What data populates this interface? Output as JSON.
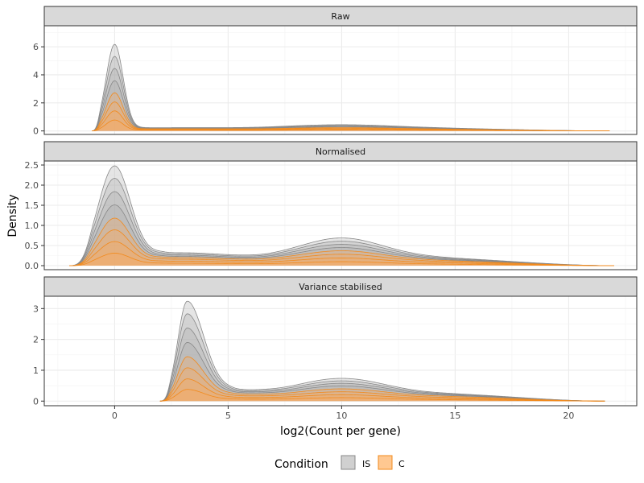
{
  "chart_data": {
    "type": "area",
    "xlabel": "log2(Count per gene)",
    "ylabel": "Density",
    "xlim": [
      -3.1,
      23.0
    ],
    "x_ticks": [
      0,
      5,
      10,
      15,
      20
    ],
    "grid": true,
    "legend": {
      "title": "Condition",
      "placement": "bottom",
      "entries": [
        {
          "name": "IS",
          "fill": "#d0d0d0",
          "line": "#888888"
        },
        {
          "name": "C",
          "fill": "#ffc891",
          "line": "#f28a1c"
        }
      ]
    },
    "panels": [
      {
        "strip": "Raw",
        "ylim": [
          -0.25,
          7.5
        ],
        "y_ticks": [
          0,
          2,
          4,
          6
        ],
        "x_start": -1.0,
        "x_end": 21.8,
        "curves": [
          {
            "condition": "C",
            "peak": 0.78,
            "valley": 0.05,
            "plateau": 0.03
          },
          {
            "condition": "C",
            "peak": 1.43,
            "valley": 0.09,
            "plateau": 0.06
          },
          {
            "condition": "C",
            "peak": 2.07,
            "valley": 0.12,
            "plateau": 0.09
          },
          {
            "condition": "C",
            "peak": 2.72,
            "valley": 0.15,
            "plateau": 0.12
          },
          {
            "condition": "IS",
            "peak": 3.58,
            "valley": 0.17,
            "plateau": 0.16
          },
          {
            "condition": "IS",
            "peak": 4.46,
            "valley": 0.19,
            "plateau": 0.19
          },
          {
            "condition": "IS",
            "peak": 5.32,
            "valley": 0.21,
            "plateau": 0.23
          },
          {
            "condition": "IS",
            "peak": 6.18,
            "valley": 0.23,
            "plateau": 0.27
          }
        ]
      },
      {
        "strip": "Normalised",
        "ylim": [
          -0.1,
          2.6
        ],
        "y_ticks": [
          0.0,
          0.5,
          1.0,
          1.5,
          2.0,
          2.5
        ],
        "x_start": -2.0,
        "x_end": 22.0,
        "curves": [
          {
            "condition": "C",
            "peak": 0.31,
            "valley": 0.06,
            "plateau": 0.06
          },
          {
            "condition": "C",
            "peak": 0.6,
            "valley": 0.11,
            "plateau": 0.12
          },
          {
            "condition": "C",
            "peak": 0.89,
            "valley": 0.16,
            "plateau": 0.18
          },
          {
            "condition": "C",
            "peak": 1.18,
            "valley": 0.2,
            "plateau": 0.24
          },
          {
            "condition": "IS",
            "peak": 1.51,
            "valley": 0.23,
            "plateau": 0.3
          },
          {
            "condition": "IS",
            "peak": 1.84,
            "valley": 0.26,
            "plateau": 0.36
          },
          {
            "condition": "IS",
            "peak": 2.17,
            "valley": 0.29,
            "plateau": 0.42
          },
          {
            "condition": "IS",
            "peak": 2.48,
            "valley": 0.32,
            "plateau": 0.48
          }
        ]
      },
      {
        "strip": "Variance stabilised",
        "ylim": [
          -0.15,
          3.4
        ],
        "y_ticks": [
          0,
          1,
          2,
          3
        ],
        "x_start": 2.0,
        "x_end": 21.6,
        "curves": [
          {
            "condition": "C",
            "peak": 0.38,
            "valley": 0.06,
            "plateau": 0.07
          },
          {
            "condition": "C",
            "peak": 0.72,
            "valley": 0.11,
            "plateau": 0.13
          },
          {
            "condition": "C",
            "peak": 1.08,
            "valley": 0.16,
            "plateau": 0.19
          },
          {
            "condition": "C",
            "peak": 1.44,
            "valley": 0.21,
            "plateau": 0.25
          },
          {
            "condition": "IS",
            "peak": 1.9,
            "valley": 0.25,
            "plateau": 0.32
          },
          {
            "condition": "IS",
            "peak": 2.37,
            "valley": 0.28,
            "plateau": 0.38
          },
          {
            "condition": "IS",
            "peak": 2.83,
            "valley": 0.31,
            "plateau": 0.44
          },
          {
            "condition": "IS",
            "peak": 3.24,
            "valley": 0.34,
            "plateau": 0.5
          }
        ]
      }
    ]
  }
}
